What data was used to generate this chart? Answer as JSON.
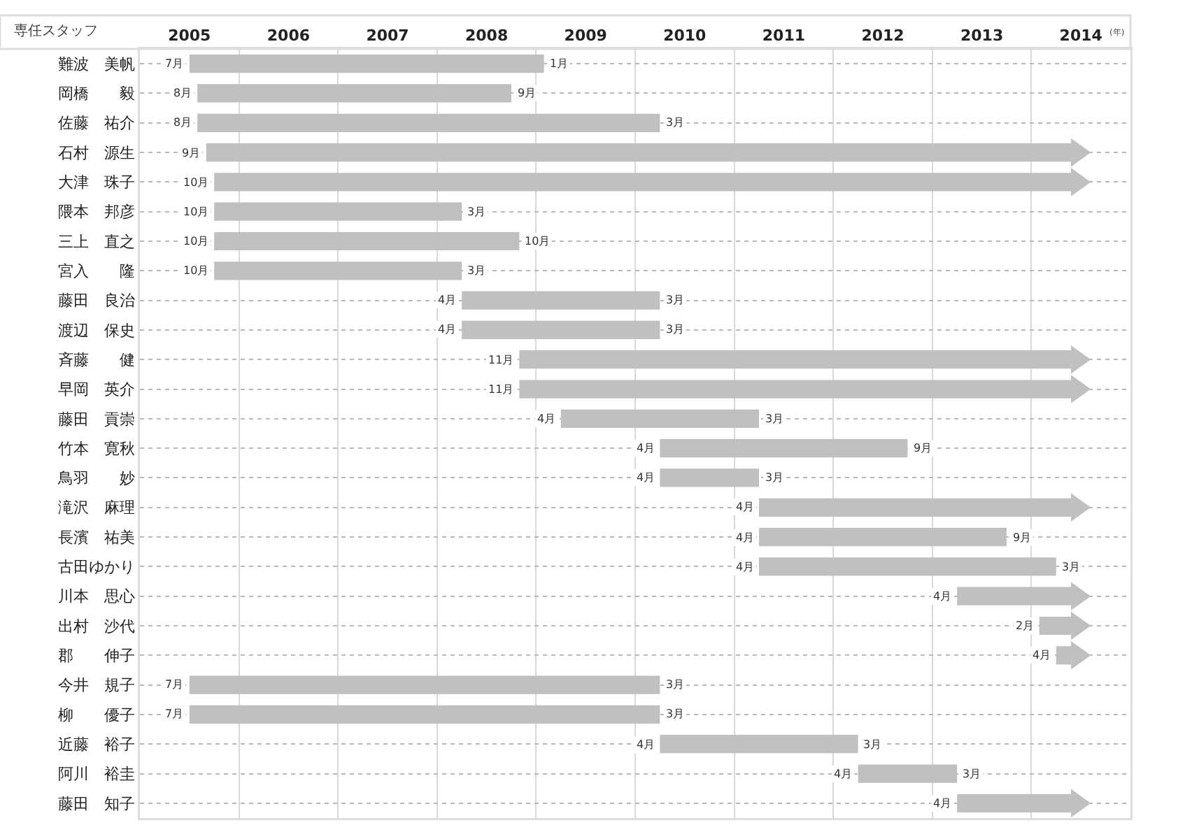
{
  "chart_data": {
    "type": "bar",
    "orientation": "horizontal",
    "ylabel": "専任スタッフ",
    "xlabel": "(年)",
    "categories": [
      "難波　美帆",
      "岡橋　　毅",
      "佐藤　祐介",
      "石村　源生",
      "大津　珠子",
      "隈本　邦彦",
      "三上　直之",
      "宮入　　隆",
      "藤田　良治",
      "渡辺　保史",
      "斉藤　　健",
      "早岡　英介",
      "藤田　貢崇",
      "竹本　寛秋",
      "鳥羽　　妙",
      "滝沢　麻理",
      "長濱　祐美",
      "古田ゆかり",
      "川本　思心",
      "出村　沙代",
      "郡　　伸子",
      "今井　規子",
      "柳　　優子",
      "近藤　裕子",
      "阿川　裕圭",
      "藤田　知子"
    ],
    "base": [
      2005.5,
      2005.58,
      2005.58,
      2005.67,
      2005.75,
      2005.75,
      2005.75,
      2005.75,
      2008.25,
      2008.25,
      2008.83,
      2008.83,
      2009.25,
      2010.25,
      2010.25,
      2011.25,
      2011.25,
      2011.25,
      2013.25,
      2014.08,
      2014.25,
      2005.5,
      2005.5,
      2010.25,
      2012.25,
      2013.25
    ],
    "values": [
      3.58,
      3.17,
      4.67,
      8.73,
      8.65,
      2.5,
      3.08,
      2.5,
      2,
      2,
      5.57,
      5.57,
      2,
      2.5,
      1,
      3.15,
      2.5,
      3,
      1.15,
      0.32,
      0.15,
      4.75,
      4.75,
      2,
      1,
      1.15
    ],
    "annotations": [
      {
        "text": "7月",
        "x": 2005.5,
        "y": "難波　美帆"
      },
      {
        "text": "1月",
        "x": 2009.08,
        "y": "難波　美帆"
      },
      {
        "text": "8月",
        "x": 2005.58,
        "y": "岡橋　　毅"
      },
      {
        "text": "9月",
        "x": 2008.75,
        "y": "岡橋　　毅"
      },
      {
        "text": "8月",
        "x": 2005.58,
        "y": "佐藤　祐介"
      },
      {
        "text": "3月",
        "x": 2010.25,
        "y": "佐藤　祐介"
      },
      {
        "text": "9月",
        "x": 2005.67,
        "y": "石村　源生"
      },
      {
        "text": "10月",
        "x": 2005.75,
        "y": "大津　珠子"
      },
      {
        "text": "10月",
        "x": 2005.75,
        "y": "隈本　邦彦"
      },
      {
        "text": "3月",
        "x": 2008.25,
        "y": "隈本　邦彦"
      },
      {
        "text": "10月",
        "x": 2005.75,
        "y": "三上　直之"
      },
      {
        "text": "10月",
        "x": 2008.83,
        "y": "三上　直之"
      },
      {
        "text": "10月",
        "x": 2005.75,
        "y": "宮入　　隆"
      },
      {
        "text": "3月",
        "x": 2008.25,
        "y": "宮入　　隆"
      },
      {
        "text": "4月",
        "x": 2008.25,
        "y": "藤田　良治"
      },
      {
        "text": "3月",
        "x": 2010.25,
        "y": "藤田　良治"
      },
      {
        "text": "4月",
        "x": 2008.25,
        "y": "渡辺　保史"
      },
      {
        "text": "3月",
        "x": 2010.25,
        "y": "渡辺　保史"
      },
      {
        "text": "11月",
        "x": 2008.83,
        "y": "斉藤　　健"
      },
      {
        "text": "11月",
        "x": 2008.83,
        "y": "早岡　英介"
      },
      {
        "text": "4月",
        "x": 2009.25,
        "y": "藤田　貢崇"
      },
      {
        "text": "3月",
        "x": 2011.25,
        "y": "藤田　貢崇"
      },
      {
        "text": "4月",
        "x": 2010.25,
        "y": "竹本　寛秋"
      },
      {
        "text": "9月",
        "x": 2012.75,
        "y": "竹本　寛秋"
      },
      {
        "text": "4月",
        "x": 2010.25,
        "y": "鳥羽　　妙"
      },
      {
        "text": "3月",
        "x": 2011.25,
        "y": "鳥羽　　妙"
      },
      {
        "text": "4月",
        "x": 2011.25,
        "y": "滝沢　麻理"
      },
      {
        "text": "4月",
        "x": 2011.25,
        "y": "長濱　祐美"
      },
      {
        "text": "9月",
        "x": 2013.75,
        "y": "長濱　祐美"
      },
      {
        "text": "4月",
        "x": 2011.25,
        "y": "古田ゆかり"
      },
      {
        "text": "3月",
        "x": 2014.25,
        "y": "古田ゆかり"
      },
      {
        "text": "4月",
        "x": 2013.25,
        "y": "川本　思心"
      },
      {
        "text": "2月",
        "x": 2014.08,
        "y": "出村　沙代"
      },
      {
        "text": "4月",
        "x": 2014.25,
        "y": "郡　　伸子"
      },
      {
        "text": "7月",
        "x": 2005.5,
        "y": "今井　規子"
      },
      {
        "text": "3月",
        "x": 2010.25,
        "y": "今井　規子"
      },
      {
        "text": "7月",
        "x": 2005.5,
        "y": "柳　　優子"
      },
      {
        "text": "3月",
        "x": 2010.25,
        "y": "柳　　優子"
      },
      {
        "text": "4月",
        "x": 2010.25,
        "y": "近藤　裕子"
      },
      {
        "text": "3月",
        "x": 2012.25,
        "y": "近藤　裕子"
      },
      {
        "text": "4月",
        "x": 2012.25,
        "y": "阿川　裕圭"
      },
      {
        "text": "3月",
        "x": 2013.25,
        "y": "阿川　裕圭"
      },
      {
        "text": "4月",
        "x": 2013.25,
        "y": "藤田　知子"
      }
    ],
    "color": "#c0c0c0",
    "xlim": [
      2005,
      2015
    ],
    "xticks": [
      {
        "value": 2005.5,
        "label": "2005"
      },
      {
        "value": 2006.5,
        "label": "2006"
      },
      {
        "value": 2007.5,
        "label": "2007"
      },
      {
        "value": 2008.5,
        "label": "2008"
      },
      {
        "value": 2009.5,
        "label": "2009"
      },
      {
        "value": 2010.5,
        "label": "2010"
      },
      {
        "value": 2011.5,
        "label": "2011"
      },
      {
        "value": 2012.5,
        "label": "2012"
      },
      {
        "value": 2013.5,
        "label": "2013"
      },
      {
        "value": 2014.5,
        "label": "2014"
      }
    ],
    "grid": true
  }
}
